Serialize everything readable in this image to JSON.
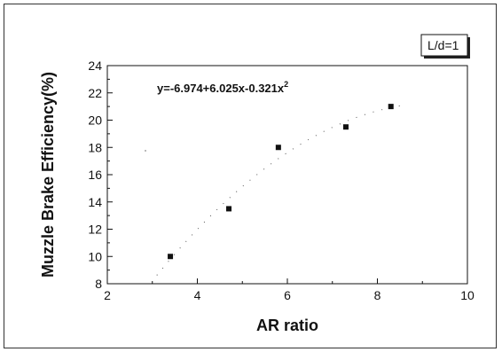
{
  "chart_data": {
    "type": "scatter",
    "xlabel": "AR ratio",
    "ylabel": "Muzzle Brake Efficiency(%)",
    "xlim": [
      2,
      10
    ],
    "ylim": [
      8,
      24
    ],
    "x_ticks": [
      2,
      4,
      6,
      8,
      10
    ],
    "y_ticks": [
      8,
      10,
      12,
      14,
      16,
      18,
      20,
      22,
      24
    ],
    "grid": false,
    "legend": {
      "label": "L/d=1",
      "placement": "top-right"
    },
    "annotation": {
      "equation_prefix": "y=-6.974+6.025x-0.321x",
      "equation_superscript": "2"
    },
    "series": [
      {
        "name": "L/d=1",
        "x": [
          3.4,
          4.7,
          5.8,
          7.3,
          8.3
        ],
        "y": [
          10.0,
          13.5,
          18.0,
          19.5,
          21.0
        ],
        "marker": "square",
        "color": "#111111"
      }
    ],
    "fit": {
      "style": "dotted",
      "coefficients": [
        -6.974,
        6.025,
        -0.321
      ]
    }
  }
}
